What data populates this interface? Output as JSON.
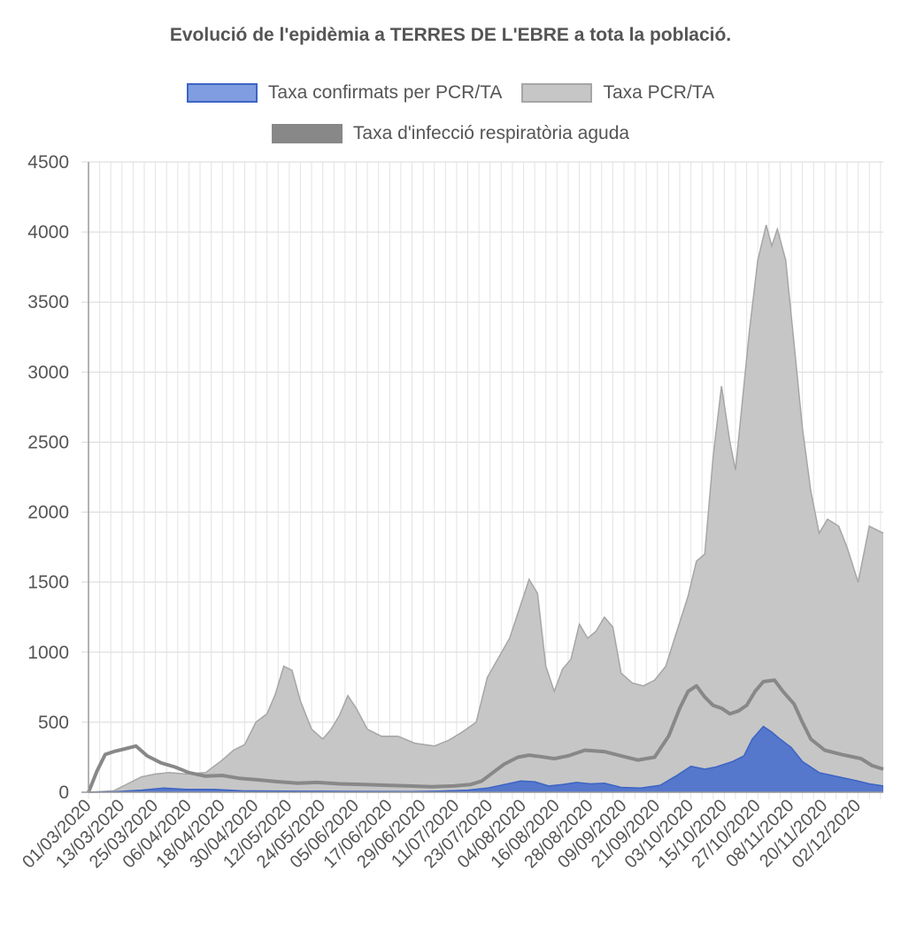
{
  "chart_data": {
    "type": "area",
    "title": "Evolució de l'epidèmia a TERRES DE L'EBRE a tota la població.",
    "xlabel": "",
    "ylabel": "",
    "ylim": [
      0,
      4500
    ],
    "y_ticks": [
      0,
      500,
      1000,
      1500,
      2000,
      2500,
      3000,
      3500,
      4000,
      4500
    ],
    "x_tick_labels": [
      "01/03/2020",
      "13/03/2020",
      "25/03/2020",
      "06/04/2020",
      "18/04/2020",
      "30/04/2020",
      "12/05/2020",
      "24/05/2020",
      "05/06/2020",
      "17/06/2020",
      "29/06/2020",
      "11/07/2020",
      "23/07/2020",
      "04/08/2020",
      "16/08/2020",
      "28/08/2020",
      "09/09/2020",
      "21/09/2020",
      "03/10/2020",
      "15/10/2020",
      "27/10/2020",
      "08/11/2020",
      "20/11/2020",
      "02/12/2020"
    ],
    "x_start": "01/03/2020",
    "x_end": "11/12/2020",
    "grid": true,
    "legend_position": "top",
    "series": [
      {
        "name": "Taxa confirmats per PCR/TA",
        "style": "area",
        "color": "#3d64c4",
        "fill": "#5577cc",
        "points": [
          [
            "01/03/2020",
            0
          ],
          [
            "10/03/2020",
            3
          ],
          [
            "20/03/2020",
            15
          ],
          [
            "28/03/2020",
            30
          ],
          [
            "05/04/2020",
            20
          ],
          [
            "15/04/2020",
            20
          ],
          [
            "25/04/2020",
            10
          ],
          [
            "10/05/2020",
            8
          ],
          [
            "25/05/2020",
            7
          ],
          [
            "10/06/2020",
            6
          ],
          [
            "25/06/2020",
            5
          ],
          [
            "05/07/2020",
            8
          ],
          [
            "15/07/2020",
            15
          ],
          [
            "22/07/2020",
            30
          ],
          [
            "28/07/2020",
            55
          ],
          [
            "03/08/2020",
            80
          ],
          [
            "08/08/2020",
            75
          ],
          [
            "13/08/2020",
            45
          ],
          [
            "18/08/2020",
            55
          ],
          [
            "23/08/2020",
            70
          ],
          [
            "28/08/2020",
            60
          ],
          [
            "02/09/2020",
            65
          ],
          [
            "08/09/2020",
            35
          ],
          [
            "15/09/2020",
            30
          ],
          [
            "22/09/2020",
            50
          ],
          [
            "28/09/2020",
            120
          ],
          [
            "03/10/2020",
            185
          ],
          [
            "08/10/2020",
            165
          ],
          [
            "12/10/2020",
            180
          ],
          [
            "18/10/2020",
            220
          ],
          [
            "22/10/2020",
            260
          ],
          [
            "25/10/2020",
            380
          ],
          [
            "29/10/2020",
            470
          ],
          [
            "01/11/2020",
            430
          ],
          [
            "04/11/2020",
            380
          ],
          [
            "08/11/2020",
            320
          ],
          [
            "12/11/2020",
            220
          ],
          [
            "18/11/2020",
            140
          ],
          [
            "25/11/2020",
            110
          ],
          [
            "02/12/2020",
            80
          ],
          [
            "06/12/2020",
            60
          ],
          [
            "11/12/2020",
            45
          ]
        ]
      },
      {
        "name": "Taxa PCR/TA",
        "style": "area",
        "color": "#a6a6a6",
        "fill": "#c6c6c6",
        "points": [
          [
            "01/03/2020",
            0
          ],
          [
            "10/03/2020",
            10
          ],
          [
            "15/03/2020",
            60
          ],
          [
            "20/03/2020",
            110
          ],
          [
            "25/03/2020",
            130
          ],
          [
            "30/03/2020",
            140
          ],
          [
            "05/04/2020",
            130
          ],
          [
            "12/04/2020",
            140
          ],
          [
            "18/04/2020",
            230
          ],
          [
            "22/04/2020",
            300
          ],
          [
            "26/04/2020",
            340
          ],
          [
            "30/04/2020",
            500
          ],
          [
            "04/05/2020",
            560
          ],
          [
            "07/05/2020",
            700
          ],
          [
            "10/05/2020",
            900
          ],
          [
            "13/05/2020",
            870
          ],
          [
            "16/05/2020",
            650
          ],
          [
            "20/05/2020",
            450
          ],
          [
            "24/05/2020",
            380
          ],
          [
            "27/05/2020",
            450
          ],
          [
            "30/05/2020",
            550
          ],
          [
            "02/06/2020",
            690
          ],
          [
            "05/06/2020",
            600
          ],
          [
            "09/06/2020",
            450
          ],
          [
            "14/06/2020",
            400
          ],
          [
            "20/06/2020",
            400
          ],
          [
            "26/06/2020",
            350
          ],
          [
            "03/07/2020",
            330
          ],
          [
            "08/07/2020",
            370
          ],
          [
            "13/07/2020",
            430
          ],
          [
            "18/07/2020",
            500
          ],
          [
            "22/07/2020",
            820
          ],
          [
            "26/07/2020",
            960
          ],
          [
            "30/07/2020",
            1100
          ],
          [
            "03/08/2020",
            1340
          ],
          [
            "06/08/2020",
            1520
          ],
          [
            "09/08/2020",
            1420
          ],
          [
            "12/08/2020",
            900
          ],
          [
            "15/08/2020",
            720
          ],
          [
            "18/08/2020",
            880
          ],
          [
            "21/08/2020",
            950
          ],
          [
            "24/08/2020",
            1200
          ],
          [
            "27/08/2020",
            1100
          ],
          [
            "30/08/2020",
            1150
          ],
          [
            "02/09/2020",
            1250
          ],
          [
            "05/09/2020",
            1180
          ],
          [
            "08/09/2020",
            850
          ],
          [
            "12/09/2020",
            780
          ],
          [
            "16/09/2020",
            760
          ],
          [
            "20/09/2020",
            800
          ],
          [
            "24/09/2020",
            900
          ],
          [
            "28/09/2020",
            1150
          ],
          [
            "02/10/2020",
            1400
          ],
          [
            "05/10/2020",
            1650
          ],
          [
            "08/10/2020",
            1700
          ],
          [
            "11/10/2020",
            2400
          ],
          [
            "14/10/2020",
            2900
          ],
          [
            "17/10/2020",
            2500
          ],
          [
            "19/10/2020",
            2300
          ],
          [
            "21/10/2020",
            2700
          ],
          [
            "24/10/2020",
            3300
          ],
          [
            "27/10/2020",
            3800
          ],
          [
            "30/10/2020",
            4050
          ],
          [
            "01/11/2020",
            3900
          ],
          [
            "03/11/2020",
            4020
          ],
          [
            "06/11/2020",
            3800
          ],
          [
            "09/11/2020",
            3200
          ],
          [
            "12/11/2020",
            2600
          ],
          [
            "15/11/2020",
            2150
          ],
          [
            "18/11/2020",
            1850
          ],
          [
            "21/11/2020",
            1950
          ],
          [
            "25/11/2020",
            1900
          ],
          [
            "28/11/2020",
            1750
          ],
          [
            "02/12/2020",
            1500
          ],
          [
            "06/12/2020",
            1900
          ],
          [
            "11/12/2020",
            1850
          ]
        ]
      },
      {
        "name": "Taxa d'infecció respiratòria aguda",
        "style": "line",
        "color": "#888888",
        "points": [
          [
            "01/03/2020",
            0
          ],
          [
            "04/03/2020",
            150
          ],
          [
            "07/03/2020",
            270
          ],
          [
            "10/03/2020",
            290
          ],
          [
            "14/03/2020",
            310
          ],
          [
            "18/03/2020",
            330
          ],
          [
            "22/03/2020",
            260
          ],
          [
            "27/03/2020",
            210
          ],
          [
            "01/04/2020",
            180
          ],
          [
            "06/04/2020",
            140
          ],
          [
            "12/04/2020",
            115
          ],
          [
            "18/04/2020",
            120
          ],
          [
            "24/04/2020",
            100
          ],
          [
            "30/04/2020",
            90
          ],
          [
            "08/05/2020",
            75
          ],
          [
            "15/05/2020",
            65
          ],
          [
            "22/05/2020",
            70
          ],
          [
            "30/05/2020",
            60
          ],
          [
            "08/06/2020",
            55
          ],
          [
            "16/06/2020",
            50
          ],
          [
            "24/06/2020",
            45
          ],
          [
            "02/07/2020",
            40
          ],
          [
            "10/07/2020",
            45
          ],
          [
            "16/07/2020",
            55
          ],
          [
            "20/07/2020",
            80
          ],
          [
            "24/07/2020",
            140
          ],
          [
            "28/07/2020",
            200
          ],
          [
            "02/08/2020",
            250
          ],
          [
            "06/08/2020",
            265
          ],
          [
            "10/08/2020",
            255
          ],
          [
            "15/08/2020",
            240
          ],
          [
            "20/08/2020",
            260
          ],
          [
            "26/08/2020",
            300
          ],
          [
            "02/09/2020",
            290
          ],
          [
            "08/09/2020",
            260
          ],
          [
            "14/09/2020",
            230
          ],
          [
            "20/09/2020",
            250
          ],
          [
            "25/09/2020",
            400
          ],
          [
            "29/09/2020",
            600
          ],
          [
            "02/10/2020",
            720
          ],
          [
            "05/10/2020",
            760
          ],
          [
            "08/10/2020",
            680
          ],
          [
            "11/10/2020",
            620
          ],
          [
            "14/10/2020",
            600
          ],
          [
            "17/10/2020",
            560
          ],
          [
            "20/10/2020",
            580
          ],
          [
            "23/10/2020",
            620
          ],
          [
            "26/10/2020",
            720
          ],
          [
            "29/10/2020",
            790
          ],
          [
            "02/11/2020",
            800
          ],
          [
            "05/11/2020",
            720
          ],
          [
            "09/11/2020",
            630
          ],
          [
            "12/11/2020",
            500
          ],
          [
            "15/11/2020",
            380
          ],
          [
            "20/11/2020",
            300
          ],
          [
            "26/11/2020",
            270
          ],
          [
            "03/12/2020",
            240
          ],
          [
            "07/12/2020",
            190
          ],
          [
            "11/12/2020",
            165
          ]
        ]
      }
    ]
  },
  "legend": {
    "items": [
      {
        "label": "Taxa confirmats per PCR/TA",
        "fill": "#7f9de0",
        "stroke": "#3d64c4"
      },
      {
        "label": "Taxa PCR/TA",
        "fill": "#c6c6c6",
        "stroke": "#a6a6a6"
      },
      {
        "label": "Taxa d'infecció respiratòria aguda",
        "fill": "#888888",
        "stroke": "#888888"
      }
    ]
  }
}
